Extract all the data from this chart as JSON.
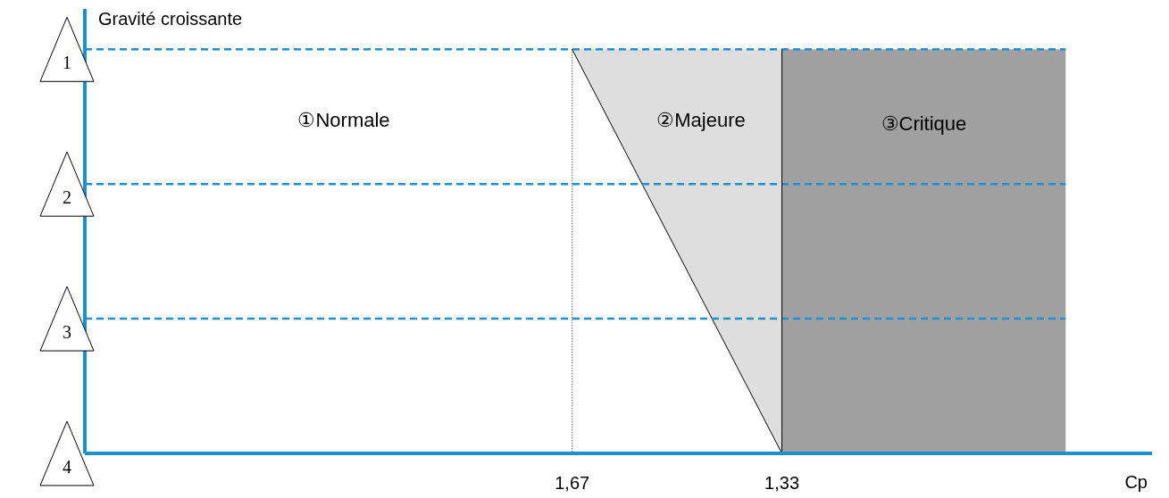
{
  "chart_data": {
    "type": "area",
    "ylabel": "Gravité croissante",
    "xlabel": "Cp",
    "xlim": [
      2.46,
      0.73
    ],
    "xticks": [
      {
        "value": 1.67,
        "label": "1,67"
      },
      {
        "value": 1.33,
        "label": "1,33"
      }
    ],
    "ylim": [
      4,
      0.7
    ],
    "yticks": [
      1,
      2,
      3,
      4
    ],
    "series": [
      {
        "x": [
          1.67,
          1.33
        ],
        "values": [
          1,
          4
        ],
        "color": "#dedede"
      }
    ],
    "ref_lines": [
      {
        "axis": "y",
        "value": 1,
        "color": "#1e90d0",
        "line_style": "dashed"
      },
      {
        "axis": "y",
        "value": 2,
        "color": "#1e90d0",
        "line_style": "dashed"
      },
      {
        "axis": "y",
        "value": 3,
        "color": "#1e90d0",
        "line_style": "dashed"
      },
      {
        "axis": "x",
        "value": 1.67,
        "color": "#000000",
        "line_style": "dotted"
      },
      {
        "axis": "x",
        "value": 1.33,
        "color": "#000000",
        "line_style": "solid"
      }
    ],
    "bands": [
      {
        "axis": "x",
        "from": 1.33,
        "to": 0.87,
        "label": "③Critique",
        "color": "#a0a0a0"
      }
    ],
    "annotations": [
      "①Normale",
      "②Majeure"
    ]
  }
}
